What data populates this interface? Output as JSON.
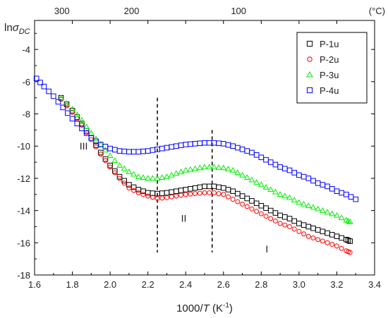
{
  "chart_data": {
    "type": "scatter",
    "xlabel_main": "1000/",
    "xlabel_var": "T",
    "xlabel_unit_pre": " (K",
    "xlabel_unit_sup": "-1",
    "xlabel_unit_post": ")",
    "ylabel_main": "ln",
    "ylabel_sym": "σ",
    "ylabel_sub": "DC",
    "top_unit": "(°C)",
    "xlim": [
      1.6,
      3.4
    ],
    "ylim": [
      -18,
      -2.2
    ],
    "x_ticks": [
      1.6,
      1.8,
      2.0,
      2.2,
      2.4,
      2.6,
      2.8,
      3.0,
      3.2,
      3.4
    ],
    "x_tick_labels": [
      "1.6",
      "1.8",
      "2.0",
      "2.2",
      "2.4",
      "2.6",
      "2.8",
      "3.0",
      "3.2",
      "3.4"
    ],
    "y_ticks": [
      -18,
      -16,
      -14,
      -12,
      -10,
      -8,
      -6,
      -4
    ],
    "y_tick_labels": [
      "-18",
      "-16",
      "-14",
      "-12",
      "-10",
      "-8",
      "-6",
      "-4"
    ],
    "top_ticks": [
      300,
      200,
      100
    ],
    "top_tick_labels": [
      "300",
      "200",
      "100"
    ],
    "vlines": [
      2.25,
      2.54
    ],
    "regions": [
      {
        "label": "III",
        "x": 1.86,
        "y": -10.2
      },
      {
        "label": "II",
        "x": 2.39,
        "y": -14.7
      },
      {
        "label": "I",
        "x": 2.83,
        "y": -16.6
      }
    ],
    "legend_position": "top-right",
    "series": [
      {
        "name": "P-1u",
        "marker": "square",
        "color": "#000000",
        "points": [
          [
            1.74,
            -7.0
          ],
          [
            1.8,
            -7.8
          ],
          [
            1.85,
            -8.6
          ],
          [
            1.9,
            -9.5
          ],
          [
            1.95,
            -10.4
          ],
          [
            2.0,
            -11.2
          ],
          [
            2.05,
            -11.9
          ],
          [
            2.1,
            -12.4
          ],
          [
            2.15,
            -12.7
          ],
          [
            2.2,
            -12.9
          ],
          [
            2.25,
            -12.95
          ],
          [
            2.3,
            -12.9
          ],
          [
            2.35,
            -12.8
          ],
          [
            2.4,
            -12.7
          ],
          [
            2.45,
            -12.6
          ],
          [
            2.5,
            -12.5
          ],
          [
            2.55,
            -12.5
          ],
          [
            2.6,
            -12.6
          ],
          [
            2.65,
            -12.8
          ],
          [
            2.7,
            -13.1
          ],
          [
            2.75,
            -13.4
          ],
          [
            2.8,
            -13.7
          ],
          [
            2.85,
            -14.0
          ],
          [
            2.9,
            -14.3
          ],
          [
            2.95,
            -14.5
          ],
          [
            3.0,
            -14.8
          ],
          [
            3.05,
            -15.0
          ],
          [
            3.1,
            -15.2
          ],
          [
            3.15,
            -15.4
          ],
          [
            3.2,
            -15.6
          ],
          [
            3.25,
            -15.8
          ],
          [
            3.27,
            -15.9
          ]
        ]
      },
      {
        "name": "P-2u",
        "marker": "circle",
        "color": "#ff0000",
        "points": [
          [
            1.74,
            -7.1
          ],
          [
            1.8,
            -7.9
          ],
          [
            1.85,
            -8.7
          ],
          [
            1.9,
            -9.6
          ],
          [
            1.95,
            -10.5
          ],
          [
            2.0,
            -11.3
          ],
          [
            2.05,
            -12.0
          ],
          [
            2.1,
            -12.6
          ],
          [
            2.15,
            -12.9
          ],
          [
            2.2,
            -13.1
          ],
          [
            2.25,
            -13.25
          ],
          [
            2.3,
            -13.2
          ],
          [
            2.35,
            -13.1
          ],
          [
            2.4,
            -13.0
          ],
          [
            2.45,
            -12.95
          ],
          [
            2.5,
            -12.9
          ],
          [
            2.55,
            -12.9
          ],
          [
            2.6,
            -13.0
          ],
          [
            2.65,
            -13.3
          ],
          [
            2.7,
            -13.6
          ],
          [
            2.75,
            -13.9
          ],
          [
            2.8,
            -14.2
          ],
          [
            2.85,
            -14.5
          ],
          [
            2.9,
            -14.8
          ],
          [
            2.95,
            -15.0
          ],
          [
            3.0,
            -15.3
          ],
          [
            3.05,
            -15.6
          ],
          [
            3.1,
            -15.8
          ],
          [
            3.15,
            -16.0
          ],
          [
            3.2,
            -16.2
          ],
          [
            3.25,
            -16.5
          ],
          [
            3.27,
            -16.6
          ]
        ]
      },
      {
        "name": "P-3u",
        "marker": "triangle",
        "color": "#00ee00",
        "points": [
          [
            1.74,
            -7.0
          ],
          [
            1.8,
            -7.7
          ],
          [
            1.85,
            -8.4
          ],
          [
            1.9,
            -9.2
          ],
          [
            1.95,
            -9.9
          ],
          [
            2.0,
            -10.6
          ],
          [
            2.05,
            -11.2
          ],
          [
            2.1,
            -11.6
          ],
          [
            2.15,
            -11.9
          ],
          [
            2.2,
            -12.0
          ],
          [
            2.25,
            -12.0
          ],
          [
            2.3,
            -11.9
          ],
          [
            2.35,
            -11.7
          ],
          [
            2.4,
            -11.5
          ],
          [
            2.45,
            -11.4
          ],
          [
            2.5,
            -11.3
          ],
          [
            2.55,
            -11.3
          ],
          [
            2.6,
            -11.35
          ],
          [
            2.65,
            -11.5
          ],
          [
            2.7,
            -11.8
          ],
          [
            2.75,
            -12.1
          ],
          [
            2.8,
            -12.4
          ],
          [
            2.85,
            -12.7
          ],
          [
            2.9,
            -13.0
          ],
          [
            2.95,
            -13.2
          ],
          [
            3.0,
            -13.5
          ],
          [
            3.05,
            -13.7
          ],
          [
            3.1,
            -13.9
          ],
          [
            3.15,
            -14.1
          ],
          [
            3.2,
            -14.3
          ],
          [
            3.25,
            -14.6
          ],
          [
            3.27,
            -14.7
          ]
        ]
      },
      {
        "name": "P-4u",
        "marker": "square",
        "color": "#0000ff",
        "points": [
          [
            1.61,
            -5.8
          ],
          [
            1.65,
            -6.3
          ],
          [
            1.7,
            -6.9
          ],
          [
            1.75,
            -7.6
          ],
          [
            1.8,
            -8.3
          ],
          [
            1.85,
            -8.9
          ],
          [
            1.9,
            -9.5
          ],
          [
            1.95,
            -9.9
          ],
          [
            2.0,
            -10.15
          ],
          [
            2.05,
            -10.3
          ],
          [
            2.1,
            -10.35
          ],
          [
            2.15,
            -10.35
          ],
          [
            2.2,
            -10.3
          ],
          [
            2.25,
            -10.2
          ],
          [
            2.3,
            -10.1
          ],
          [
            2.35,
            -10.0
          ],
          [
            2.4,
            -9.9
          ],
          [
            2.45,
            -9.85
          ],
          [
            2.5,
            -9.8
          ],
          [
            2.55,
            -9.8
          ],
          [
            2.6,
            -9.85
          ],
          [
            2.65,
            -10.0
          ],
          [
            2.7,
            -10.2
          ],
          [
            2.75,
            -10.4
          ],
          [
            2.8,
            -10.7
          ],
          [
            2.85,
            -11.0
          ],
          [
            2.9,
            -11.3
          ],
          [
            2.95,
            -11.5
          ],
          [
            3.0,
            -11.8
          ],
          [
            3.05,
            -12.0
          ],
          [
            3.1,
            -12.3
          ],
          [
            3.15,
            -12.5
          ],
          [
            3.2,
            -12.8
          ],
          [
            3.25,
            -13.0
          ],
          [
            3.3,
            -13.3
          ]
        ]
      }
    ]
  }
}
